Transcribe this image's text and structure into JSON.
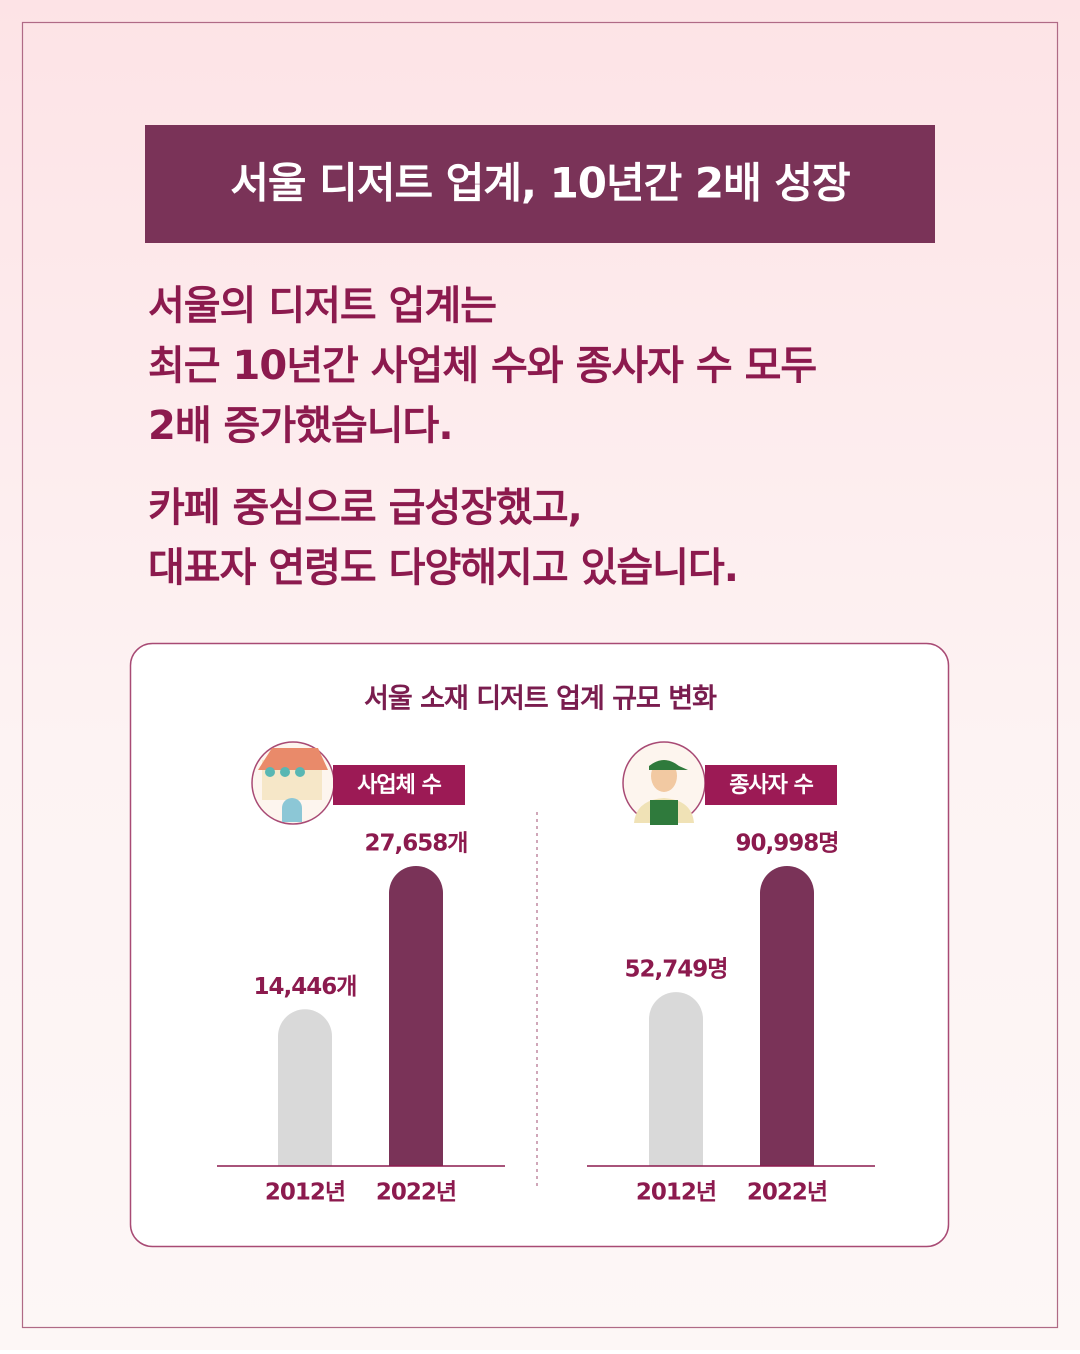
{
  "header": {
    "title": "서울 디저트 업계, 10년간 2배 성장"
  },
  "body": [
    [
      "서울의 디저트 업계는",
      "최근 10년간 사업체 수와 종사자 수 모두",
      "2배 증가했습니다."
    ],
    [
      "카페 중심으로 급성장했고,",
      "대표자 연령도 다양해지고 있습니다."
    ]
  ],
  "panel_title": "서울 소재 디저트 업계 규모 변화",
  "chart_data": [
    {
      "type": "bar",
      "title": "사업체 수",
      "categories": [
        "2012년",
        "2022년"
      ],
      "values": [
        14446,
        27658
      ],
      "value_labels": [
        "14,446개",
        "27,658개"
      ],
      "colors": [
        "#d9d9d9",
        "#7a3358"
      ]
    },
    {
      "type": "bar",
      "title": "종사자 수",
      "categories": [
        "2012년",
        "2022년"
      ],
      "values": [
        52749,
        90998
      ],
      "value_labels": [
        "52,749명",
        "90,998명"
      ],
      "colors": [
        "#d9d9d9",
        "#7a3358"
      ]
    }
  ]
}
